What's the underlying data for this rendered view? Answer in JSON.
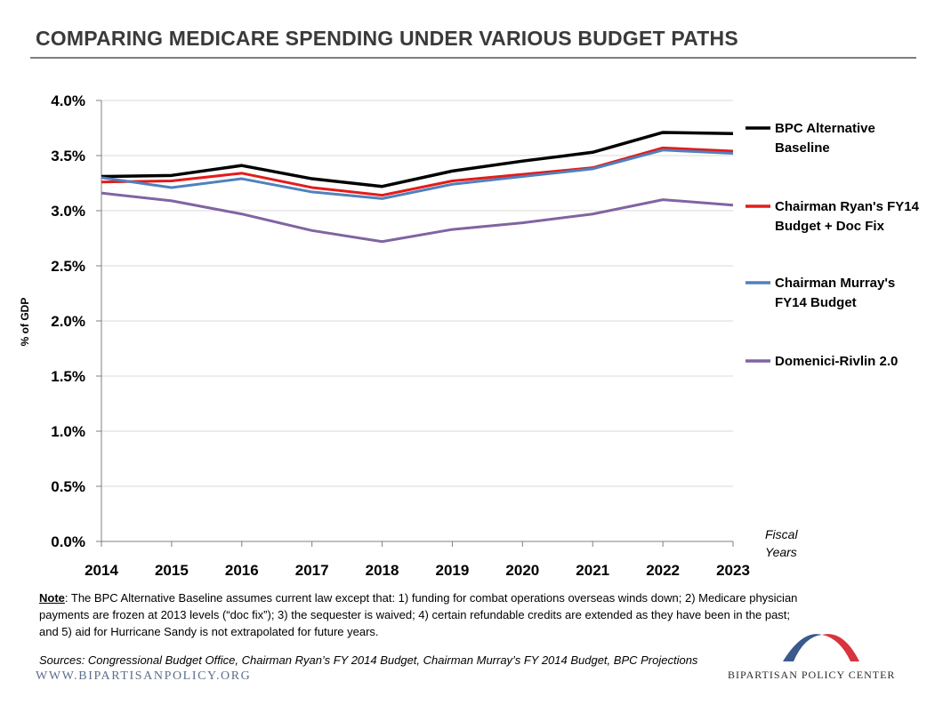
{
  "header": {
    "title": "COMPARING MEDICARE SPENDING UNDER VARIOUS BUDGET PATHS"
  },
  "chart_data": {
    "type": "line",
    "title": "COMPARING MEDICARE SPENDING UNDER VARIOUS BUDGET PATHS",
    "xlabel": "Fiscal Years",
    "ylabel": "% of GDP",
    "x": [
      2014,
      2015,
      2016,
      2017,
      2018,
      2019,
      2020,
      2021,
      2022,
      2023
    ],
    "ylim": [
      0,
      4.0
    ],
    "y_ticks": [
      "0.0%",
      "0.5%",
      "1.0%",
      "1.5%",
      "2.0%",
      "2.5%",
      "3.0%",
      "3.5%",
      "4.0%"
    ],
    "grid": true,
    "legend_position": "right",
    "series": [
      {
        "name": "BPC Alternative Baseline",
        "legend_lines": [
          "BPC Alternative",
          "Baseline"
        ],
        "color": "#000000",
        "values": [
          3.31,
          3.32,
          3.41,
          3.29,
          3.22,
          3.36,
          3.45,
          3.53,
          3.71,
          3.7
        ]
      },
      {
        "name": "Chairman Ryan's FY14 Budget + Doc Fix",
        "legend_lines": [
          "Chairman Ryan's FY14",
          "Budget + Doc Fix"
        ],
        "color": "#e41b1b",
        "values": [
          3.26,
          3.27,
          3.34,
          3.21,
          3.14,
          3.27,
          3.33,
          3.39,
          3.57,
          3.54
        ]
      },
      {
        "name": "Chairman Murray's FY14 Budget",
        "legend_lines": [
          "Chairman Murray's",
          "FY14 Budget"
        ],
        "color": "#4f81bd",
        "values": [
          3.3,
          3.21,
          3.29,
          3.17,
          3.11,
          3.24,
          3.31,
          3.38,
          3.55,
          3.52
        ]
      },
      {
        "name": "Domenici-Rivlin 2.0",
        "legend_lines": [
          "Domenici-Rivlin 2.0"
        ],
        "color": "#8064a2",
        "values": [
          3.16,
          3.09,
          2.97,
          2.82,
          2.72,
          2.83,
          2.89,
          2.97,
          3.1,
          3.05
        ]
      }
    ]
  },
  "axis": {
    "fiscal_line1": "Fiscal",
    "fiscal_line2": "Years"
  },
  "note": {
    "label": "Note",
    "text": ": The BPC Alternative Baseline assumes current law except that: 1) funding for combat operations overseas winds down; 2) Medicare physician payments are frozen at 2013 levels (“doc fix”); 3) the sequester is waived; 4) certain refundable credits are extended as they have been in the past; and 5) aid for Hurricane Sandy is not extrapolated for future years."
  },
  "sources": "Sources: Congressional Budget Office, Chairman Ryan’s FY 2014 Budget, Chairman Murray’s FY 2014 Budget, BPC Projections",
  "footer": {
    "url": "WWW.BIPARTISANPOLICY.ORG",
    "logo_text": "BIPARTISAN POLICY CENTER",
    "logo_colors": {
      "blue": "#3a5a8c",
      "red": "#d8343e"
    }
  }
}
